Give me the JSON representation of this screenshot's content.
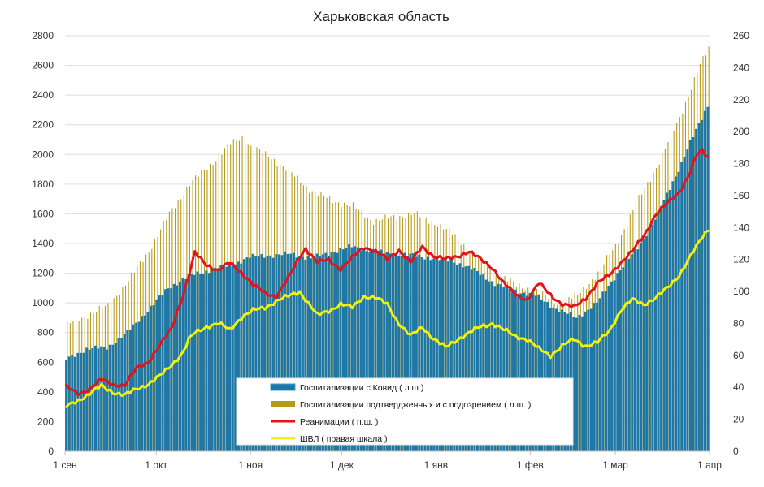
{
  "chart_data": {
    "type": "bar",
    "title": "Харьковская область",
    "x_ticks": [
      "1 сен",
      "1 окт",
      "1 ноя",
      "1 дек",
      "1 янв",
      "1 фев",
      "1 мар",
      "1 апр"
    ],
    "left_axis": {
      "range": [
        0,
        2800
      ],
      "ticks": [
        0,
        200,
        400,
        600,
        800,
        1000,
        1200,
        1400,
        1600,
        1800,
        2000,
        2200,
        2400,
        2600,
        2800
      ]
    },
    "right_axis": {
      "range": [
        0,
        260
      ],
      "ticks": [
        0,
        20,
        40,
        60,
        80,
        100,
        120,
        140,
        160,
        180,
        200,
        220,
        240,
        260
      ]
    },
    "grid": "horizontal",
    "legend_position": "bottom-center",
    "series": [
      {
        "name": "Госпитализации с Ковид ( л.ш )",
        "kind": "bar",
        "axis": "left",
        "color": "#1f77a6",
        "keypoints": [
          [
            0,
            620
          ],
          [
            7,
            690
          ],
          [
            14,
            700
          ],
          [
            21,
            800
          ],
          [
            28,
            950
          ],
          [
            35,
            1100
          ],
          [
            42,
            1180
          ],
          [
            49,
            1220
          ],
          [
            56,
            1250
          ],
          [
            63,
            1310
          ],
          [
            70,
            1320
          ],
          [
            77,
            1330
          ],
          [
            84,
            1300
          ],
          [
            91,
            1340
          ],
          [
            98,
            1380
          ],
          [
            105,
            1350
          ],
          [
            112,
            1330
          ],
          [
            119,
            1320
          ],
          [
            126,
            1300
          ],
          [
            133,
            1280
          ],
          [
            140,
            1220
          ],
          [
            147,
            1130
          ],
          [
            154,
            1080
          ],
          [
            161,
            1050
          ],
          [
            168,
            960
          ],
          [
            175,
            900
          ],
          [
            182,
            1000
          ],
          [
            189,
            1200
          ],
          [
            196,
            1370
          ],
          [
            203,
            1600
          ],
          [
            210,
            1900
          ],
          [
            214,
            2080
          ],
          [
            217,
            2200
          ],
          [
            220,
            2330
          ]
        ]
      },
      {
        "name": "Госпитализации подтвердженных и с подозрением ( л.ш. )",
        "kind": "bar",
        "axis": "left",
        "color": "#b59a14",
        "keypoints": [
          [
            0,
            850
          ],
          [
            7,
            920
          ],
          [
            14,
            980
          ],
          [
            21,
            1150
          ],
          [
            28,
            1350
          ],
          [
            35,
            1600
          ],
          [
            42,
            1800
          ],
          [
            49,
            1930
          ],
          [
            56,
            2070
          ],
          [
            60,
            2120
          ],
          [
            63,
            2050
          ],
          [
            70,
            1980
          ],
          [
            77,
            1870
          ],
          [
            84,
            1750
          ],
          [
            91,
            1690
          ],
          [
            98,
            1650
          ],
          [
            105,
            1550
          ],
          [
            112,
            1580
          ],
          [
            119,
            1600
          ],
          [
            126,
            1540
          ],
          [
            133,
            1450
          ],
          [
            140,
            1320
          ],
          [
            147,
            1200
          ],
          [
            154,
            1120
          ],
          [
            161,
            1080
          ],
          [
            168,
            1000
          ],
          [
            175,
            1050
          ],
          [
            182,
            1200
          ],
          [
            189,
            1420
          ],
          [
            196,
            1700
          ],
          [
            203,
            1950
          ],
          [
            210,
            2250
          ],
          [
            214,
            2450
          ],
          [
            217,
            2600
          ],
          [
            220,
            2720
          ]
        ]
      },
      {
        "name": "Реанимации ( п.ш. )",
        "kind": "line",
        "axis": "right",
        "color": "#e0141b",
        "keypoints": [
          [
            0,
            40
          ],
          [
            4,
            36
          ],
          [
            8,
            39
          ],
          [
            12,
            45
          ],
          [
            16,
            42
          ],
          [
            20,
            41
          ],
          [
            24,
            52
          ],
          [
            28,
            56
          ],
          [
            32,
            66
          ],
          [
            36,
            77
          ],
          [
            40,
            98
          ],
          [
            42,
            110
          ],
          [
            44,
            124
          ],
          [
            48,
            117
          ],
          [
            52,
            113
          ],
          [
            56,
            118
          ],
          [
            60,
            112
          ],
          [
            64,
            104
          ],
          [
            68,
            99
          ],
          [
            72,
            97
          ],
          [
            76,
            108
          ],
          [
            80,
            122
          ],
          [
            82,
            127
          ],
          [
            86,
            118
          ],
          [
            90,
            120
          ],
          [
            94,
            114
          ],
          [
            98,
            121
          ],
          [
            102,
            128
          ],
          [
            106,
            125
          ],
          [
            110,
            120
          ],
          [
            114,
            126
          ],
          [
            118,
            118
          ],
          [
            122,
            128
          ],
          [
            126,
            122
          ],
          [
            130,
            120
          ],
          [
            134,
            122
          ],
          [
            138,
            125
          ],
          [
            142,
            120
          ],
          [
            146,
            115
          ],
          [
            150,
            105
          ],
          [
            154,
            98
          ],
          [
            158,
            95
          ],
          [
            162,
            105
          ],
          [
            166,
            98
          ],
          [
            170,
            92
          ],
          [
            174,
            90
          ],
          [
            178,
            96
          ],
          [
            182,
            105
          ],
          [
            186,
            110
          ],
          [
            190,
            118
          ],
          [
            194,
            125
          ],
          [
            198,
            135
          ],
          [
            202,
            148
          ],
          [
            206,
            155
          ],
          [
            210,
            162
          ],
          [
            214,
            175
          ],
          [
            216,
            185
          ],
          [
            218,
            188
          ],
          [
            220,
            184
          ]
        ]
      },
      {
        "name": "ШВЛ ( правая шкала )",
        "kind": "line",
        "axis": "right",
        "color": "#f2f20a",
        "keypoints": [
          [
            0,
            28
          ],
          [
            4,
            32
          ],
          [
            8,
            36
          ],
          [
            12,
            41
          ],
          [
            16,
            37
          ],
          [
            20,
            35
          ],
          [
            24,
            39
          ],
          [
            28,
            42
          ],
          [
            32,
            47
          ],
          [
            36,
            54
          ],
          [
            40,
            62
          ],
          [
            42,
            70
          ],
          [
            44,
            74
          ],
          [
            48,
            78
          ],
          [
            52,
            80
          ],
          [
            56,
            76
          ],
          [
            60,
            84
          ],
          [
            64,
            88
          ],
          [
            68,
            90
          ],
          [
            72,
            94
          ],
          [
            76,
            97
          ],
          [
            80,
            100
          ],
          [
            82,
            95
          ],
          [
            86,
            85
          ],
          [
            90,
            88
          ],
          [
            94,
            92
          ],
          [
            98,
            90
          ],
          [
            102,
            97
          ],
          [
            106,
            96
          ],
          [
            110,
            92
          ],
          [
            114,
            80
          ],
          [
            118,
            72
          ],
          [
            122,
            78
          ],
          [
            126,
            70
          ],
          [
            130,
            65
          ],
          [
            134,
            70
          ],
          [
            138,
            74
          ],
          [
            142,
            78
          ],
          [
            146,
            80
          ],
          [
            150,
            76
          ],
          [
            154,
            72
          ],
          [
            158,
            70
          ],
          [
            162,
            64
          ],
          [
            166,
            60
          ],
          [
            170,
            66
          ],
          [
            174,
            70
          ],
          [
            178,
            66
          ],
          [
            182,
            68
          ],
          [
            186,
            75
          ],
          [
            190,
            88
          ],
          [
            194,
            95
          ],
          [
            198,
            92
          ],
          [
            202,
            96
          ],
          [
            206,
            102
          ],
          [
            210,
            110
          ],
          [
            214,
            122
          ],
          [
            216,
            128
          ],
          [
            218,
            134
          ],
          [
            220,
            139
          ]
        ]
      }
    ]
  }
}
